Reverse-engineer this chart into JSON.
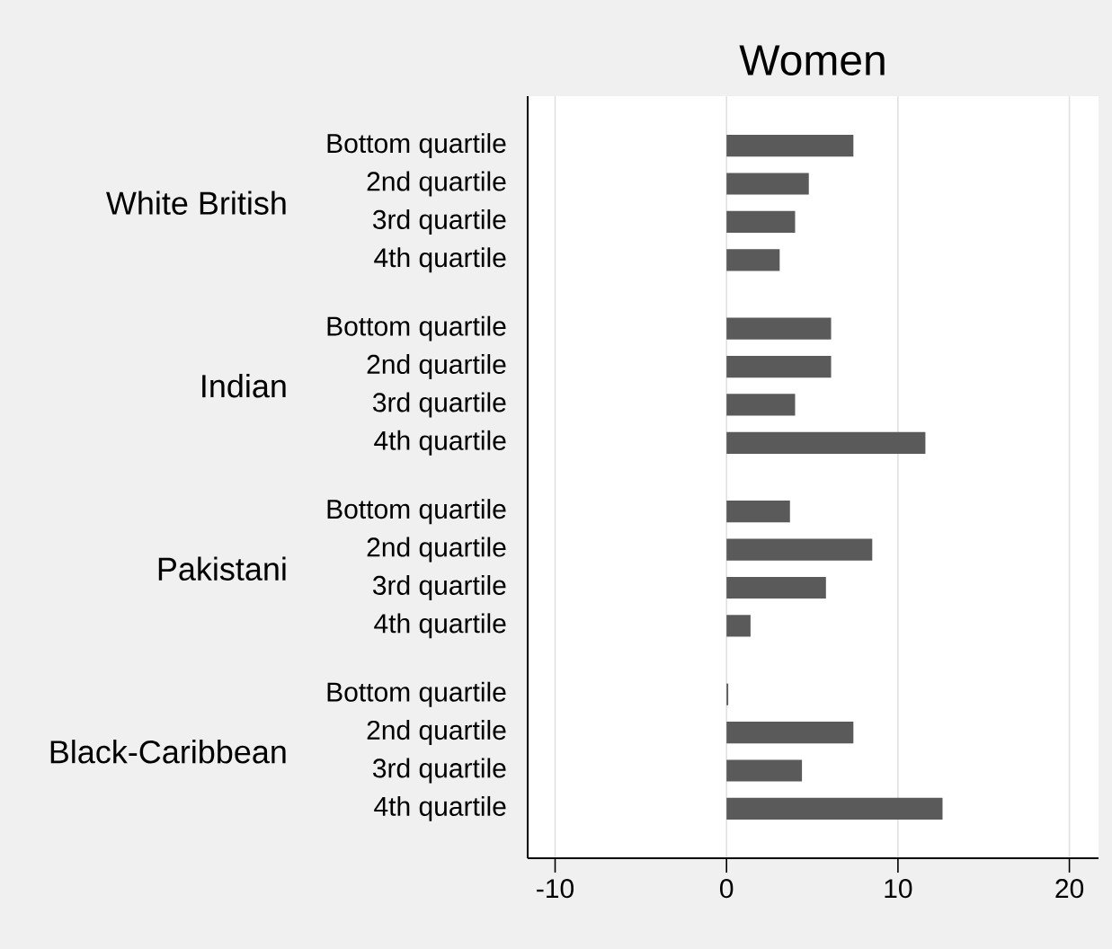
{
  "chart_data": {
    "type": "bar",
    "orientation": "horizontal",
    "title": "Women",
    "categories": [
      "Bottom quartile",
      "2nd quartile",
      "3rd quartile",
      "4th quartile",
      "Bottom quartile",
      "2nd quartile",
      "3rd quartile",
      "4th quartile",
      "Bottom quartile",
      "2nd quartile",
      "3rd quartile",
      "4th quartile",
      "Bottom quartile",
      "2nd quartile",
      "3rd quartile",
      "4th quartile"
    ],
    "values": [
      7.4,
      4.8,
      4.0,
      3.1,
      6.1,
      6.1,
      4.0,
      11.6,
      3.7,
      8.5,
      5.8,
      1.4,
      0.1,
      7.4,
      4.4,
      12.6
    ],
    "color": "#5a5a5a",
    "annotations": [
      "White British",
      "Indian",
      "Pakistani",
      "Black-Caribbean"
    ],
    "xlim": [
      -11.6,
      21.7
    ],
    "xticks": [
      -10,
      0,
      10,
      20
    ],
    "grid": "x"
  }
}
